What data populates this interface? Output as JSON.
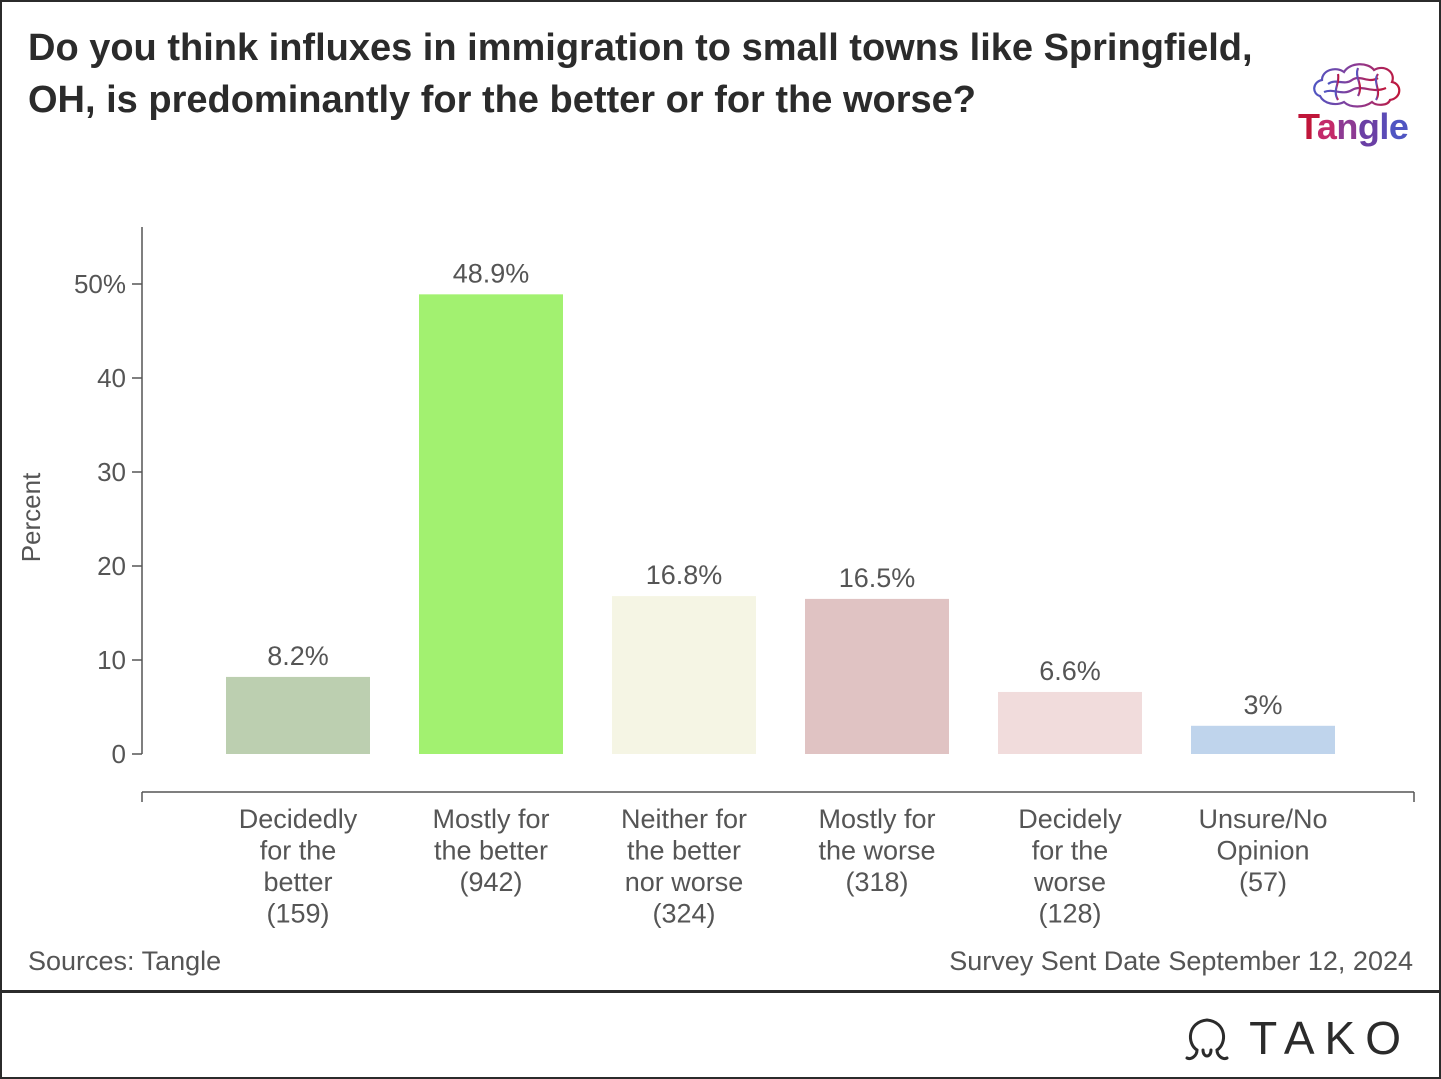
{
  "title": "Do you think influxes in immigration to small towns like Springfield, OH, is predominantly for the better or for the worse?",
  "logo": {
    "brand": "Tangle",
    "icon": "brain-icon",
    "letter_colors": [
      "#c0163a",
      "#c32a6a",
      "#8d3a93",
      "#6a3fa5",
      "#5b4bb6",
      "#4f55c2"
    ]
  },
  "footer": {
    "source": "Sources: Tangle",
    "date": "Survey Sent Date September 12, 2024",
    "brand": "TAKO",
    "brand_icon": "tako-omega-icon"
  },
  "chart_data": {
    "type": "bar",
    "title": "Do you think influxes in immigration to small towns like Springfield, OH, is predominantly for the better or for the worse?",
    "ylabel": "Percent",
    "xlabel": "",
    "ylim": [
      0,
      55
    ],
    "yticks": [
      0,
      10,
      20,
      30,
      40,
      50
    ],
    "ytick_labels": [
      "0",
      "10",
      "20",
      "30",
      "40",
      "50%"
    ],
    "grid": false,
    "categories": [
      [
        "Decidedly",
        "for the",
        "better",
        "(159)"
      ],
      [
        "Mostly for",
        "the better",
        "(942)"
      ],
      [
        "Neither for",
        "the better",
        "nor worse",
        "(324)"
      ],
      [
        "Mostly for",
        "the worse",
        "(318)"
      ],
      [
        "Decidely",
        "for the",
        "worse",
        "(128)"
      ],
      [
        "Unsure/No",
        "Opinion",
        "(57)"
      ]
    ],
    "values": [
      8.2,
      48.9,
      16.8,
      16.5,
      6.6,
      3
    ],
    "value_labels": [
      "8.2%",
      "48.9%",
      "16.8%",
      "16.5%",
      "6.6%",
      "3%"
    ],
    "colors": [
      "#bccfb0",
      "#a2f170",
      "#f5f5e4",
      "#e0c3c3",
      "#f1dcdc",
      "#bfd4ec"
    ]
  }
}
